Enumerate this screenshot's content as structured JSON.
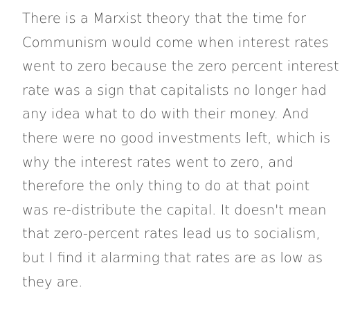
{
  "quote": {
    "lines": [
      "There is a Marxist theory that the time for",
      "Communism would come when interest rates",
      "went to zero because the zero percent interest",
      "rate was a sign that capitalists no longer had",
      "any idea what to do with their money. And",
      "there were no good investments left, which is",
      "why the interest rates went to zero, and",
      "therefore the only thing to do at that point",
      "was re-distribute the capital. It doesn't mean",
      "that zero-percent rates lead us to socialism,",
      "but I find it alarming that rates are as low as",
      "they are."
    ]
  },
  "colors": {
    "text": "#4a4a4a",
    "background": "#ffffff"
  }
}
